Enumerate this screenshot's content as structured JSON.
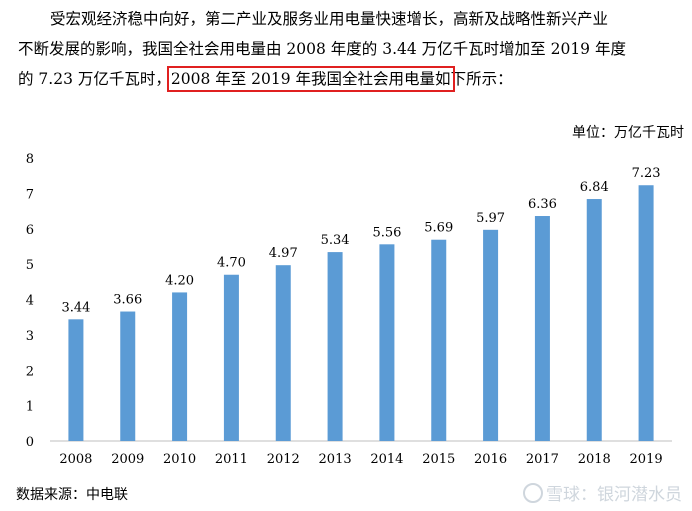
{
  "paragraph": {
    "line1": "受宏观经济稳中向好，第二产业及服务业用电量快速增长，高新及战略性新兴产业",
    "line2": "不断发展的影响，我国全社会用电量由 2008 年度的 3.44 万亿千瓦时增加至 2019 年度",
    "line3_pre": "的 7.23 万亿千瓦时，",
    "line3_highlight": "2008 年至 2019 年我国全社会用电量如",
    "line3_post": "下所示："
  },
  "unit_label": "单位：万亿千瓦时",
  "source_label": "数据来源：中电联",
  "watermark": {
    "icon": "snowball-icon",
    "text": "雪球：银河潜水员"
  },
  "colors": {
    "bar": "#5B9BD5",
    "highlight_box": "#e02020"
  },
  "chart_data": {
    "type": "bar",
    "categories": [
      "2008",
      "2009",
      "2010",
      "2011",
      "2012",
      "2013",
      "2014",
      "2015",
      "2016",
      "2017",
      "2018",
      "2019"
    ],
    "values": [
      3.44,
      3.66,
      4.2,
      4.7,
      4.97,
      5.34,
      5.56,
      5.69,
      5.97,
      6.36,
      6.84,
      7.23
    ],
    "value_labels": [
      "3.44",
      "3.66",
      "4.20",
      "4.70",
      "4.97",
      "5.34",
      "5.56",
      "5.69",
      "5.97",
      "6.36",
      "6.84",
      "7.23"
    ],
    "y_ticks": [
      "0",
      "1",
      "2",
      "3",
      "4",
      "5",
      "6",
      "7",
      "8"
    ],
    "ylim": [
      0,
      8
    ],
    "grid": false,
    "legend": "none"
  }
}
